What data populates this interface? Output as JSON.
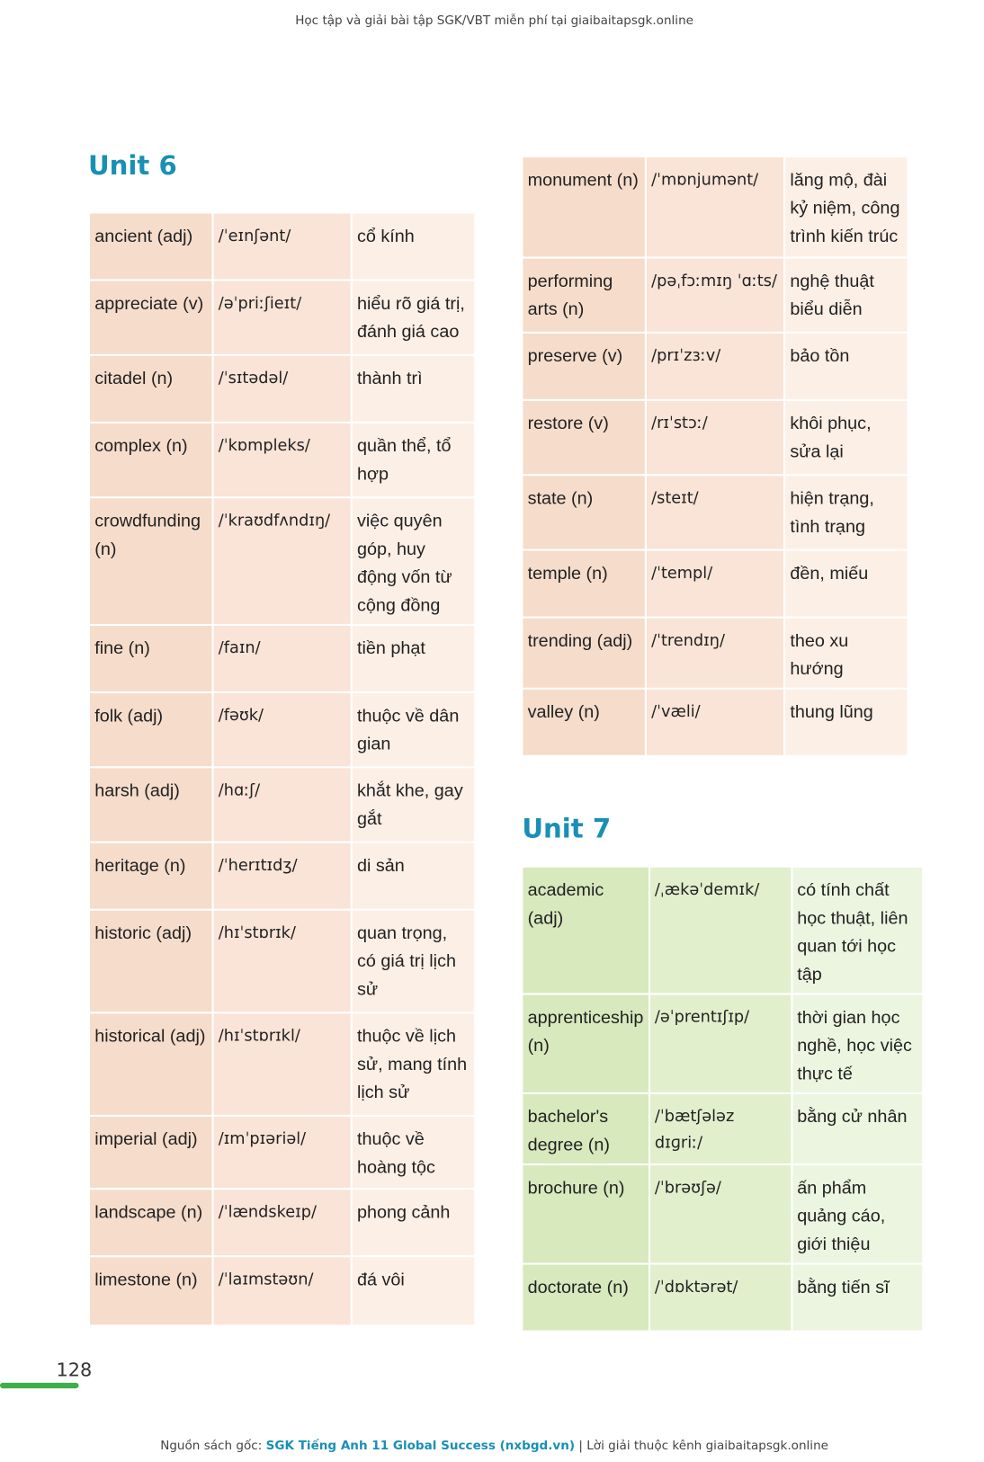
{
  "header": "Học tập và giải bài tập SGK/VBT miễn phí tại giaibaitapsgk.online",
  "unit6": {
    "title": "Unit 6",
    "rows": [
      [
        "ancient (adj)",
        "/ˈeɪnʃənt/",
        "cổ kính"
      ],
      [
        "appreciate (v)",
        "/əˈpriːʃieɪt/",
        "hiểu rõ giá trị, đánh giá cao"
      ],
      [
        "citadel (n)",
        "/ˈsɪtədəl/",
        "thành trì"
      ],
      [
        "complex (n)",
        "/ˈkɒmpleks/",
        "quần thể, tổ hợp"
      ],
      [
        "crowdfunding (n)",
        "/ˈkraʊdfʌndɪŋ/",
        "việc quyên góp, huy động vốn từ cộng đồng"
      ],
      [
        "fine (n)",
        "/faɪn/",
        "tiền phạt"
      ],
      [
        "folk (adj)",
        "/fəʊk/",
        "thuộc về dân gian"
      ],
      [
        "harsh (adj)",
        "/hɑːʃ/",
        "khắt khe, gay gắt"
      ],
      [
        "heritage (n)",
        "/ˈherɪtɪdʒ/",
        "di sản"
      ],
      [
        "historic (adj)",
        "/hɪˈstɒrɪk/",
        "quan trọng, có giá trị lịch sử"
      ],
      [
        "historical (adj)",
        "/hɪˈstɒrɪkl/",
        "thuộc về lịch sử, mang tính lịch sử"
      ],
      [
        "imperial (adj)",
        "/ɪmˈpɪəriəl/",
        "thuộc về hoàng tộc"
      ],
      [
        "landscape (n)",
        "/ˈlændskeɪp/",
        "phong cảnh"
      ],
      [
        "limestone (n)",
        "/ˈlaɪmstəʊn/",
        "đá vôi"
      ]
    ],
    "rows_cont": [
      [
        "monument (n)",
        "/ˈmɒnjumənt/",
        "lăng mộ, đài kỷ niệm, công trình kiến trúc"
      ],
      [
        "performing arts (n)",
        "/pəˌfɔːmɪŋ ˈɑːts/",
        "nghệ thuật biểu diễn"
      ],
      [
        "preserve (v)",
        "/prɪˈzɜːv/",
        "bảo tồn"
      ],
      [
        "restore (v)",
        "/rɪˈstɔː/",
        "khôi phục, sửa lại"
      ],
      [
        "state (n)",
        "/steɪt/",
        "hiện trạng, tình trạng"
      ],
      [
        "temple (n)",
        "/ˈtempl/",
        "đền, miếu"
      ],
      [
        "trending (adj)",
        "/ˈtrendɪŋ/",
        "theo xu hướng"
      ],
      [
        "valley (n)",
        "/ˈvæli/",
        "thung lũng"
      ]
    ]
  },
  "unit7": {
    "title": "Unit 7",
    "rows": [
      [
        "academic (adj)",
        "/ˌækəˈdemɪk/",
        "có tính chất học thuật, liên quan tới học tập"
      ],
      [
        "apprenticeship (n)",
        "/əˈprentɪʃɪp/",
        "thời gian học nghề, học việc thực tế"
      ],
      [
        "bachelor's degree (n)",
        "/ˈbætʃələz dɪɡriː/",
        "bằng cử nhân"
      ],
      [
        "brochure (n)",
        "/ˈbrəʊʃə/",
        "ấn phẩm quảng cáo, giới thiệu"
      ],
      [
        "doctorate (n)",
        "/ˈdɒktərət/",
        "bằng tiến sĩ"
      ]
    ]
  },
  "page_number": "128",
  "footer": {
    "prefix": "Nguồn sách gốc:",
    "source": "SGK Tiếng Anh 11 Global Success (nxbgd.vn)",
    "suffix": "| Lời giải thuộc kênh giaibaitapsgk.online"
  }
}
